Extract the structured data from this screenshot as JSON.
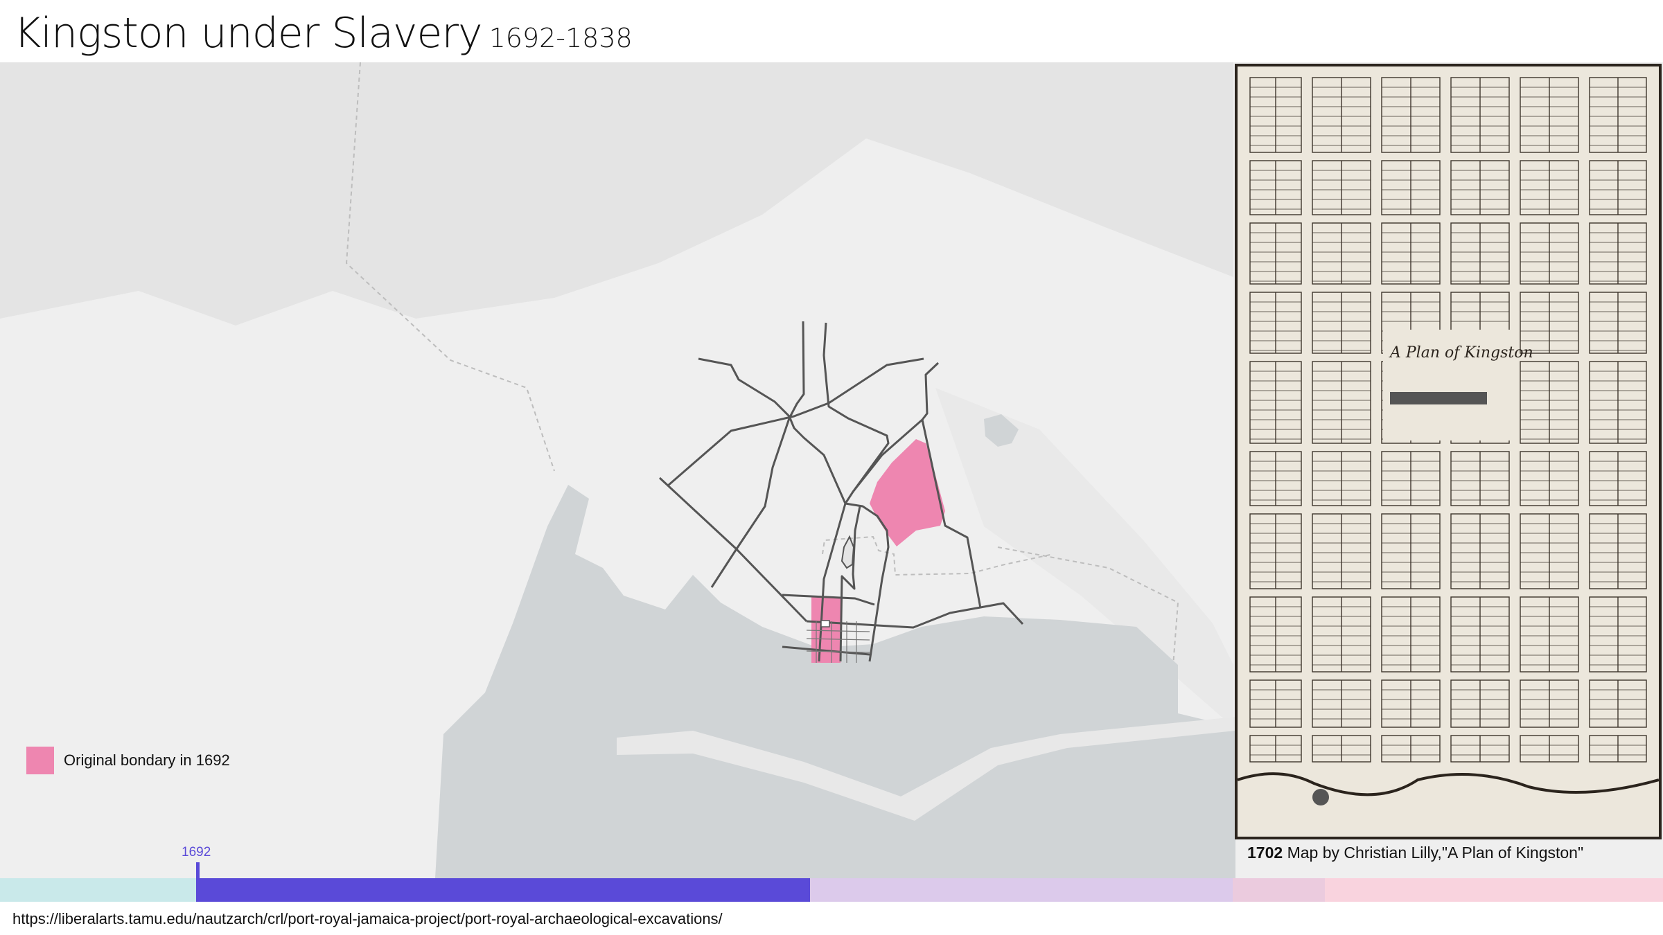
{
  "header": {
    "title": "Kingston under Slavery",
    "years": "1692-1838"
  },
  "map": {
    "legend": {
      "label": "Original bondary in 1692",
      "color": "#ee86b0"
    },
    "colors": {
      "land": "#efefef",
      "water": "#d0d4d6",
      "roads": "#555555",
      "boundary": "#ee86b0"
    }
  },
  "historic_map": {
    "scan_title": "A Plan of Kingston",
    "caption_year": "1702",
    "caption_text": "Map by Christian Lilly,\"A  Plan of Kingston\""
  },
  "timeline": {
    "current_year": "1692",
    "accent": "#5a4ad8",
    "segment_colors": [
      "#c9e9ea",
      "#5a4ad8",
      "#dccaeb",
      "#ebcbde",
      "#f9d3de"
    ]
  },
  "source_url": "https://liberalarts.tamu.edu/nautzarch/crl/port-royal-jamaica-project/port-royal-archaeological-excavations/"
}
